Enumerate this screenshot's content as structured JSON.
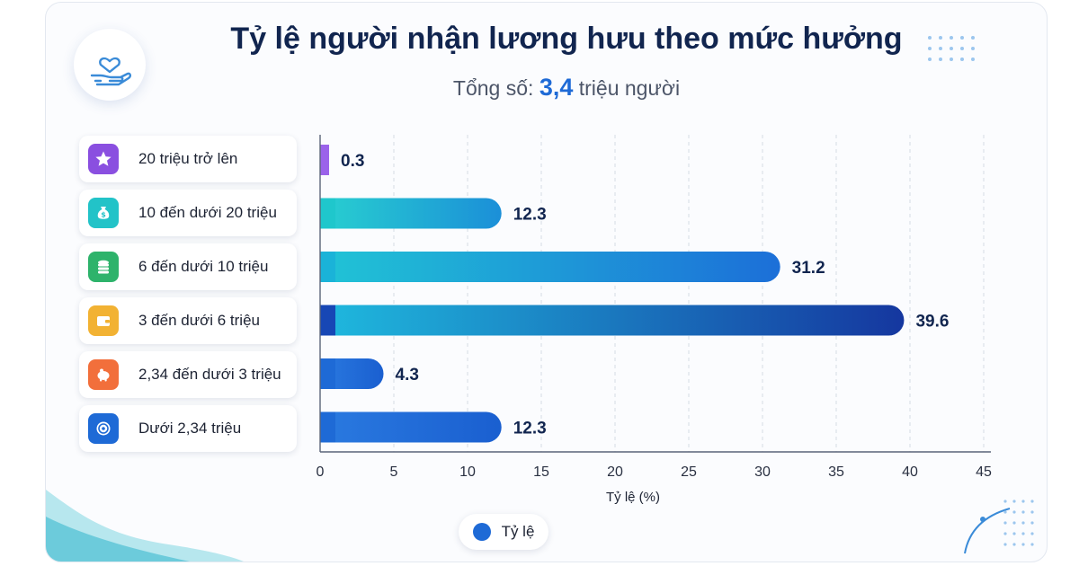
{
  "chart_data": {
    "type": "bar",
    "orientation": "horizontal",
    "title": "Tỷ lệ người nhận lương hưu theo mức hưởng",
    "subtitle_prefix": "Tổng số: ",
    "subtitle_value": "3,4",
    "subtitle_suffix": " triệu người",
    "categories": [
      "20 triệu trở lên",
      "10 đến dưới 20 triệu",
      "6 đến dưới 10 triệu",
      "3 đến dưới 6 triệu",
      "2,34 đến dưới 3 triệu",
      "Dưới 2,34 triệu"
    ],
    "series": [
      {
        "name": "Tỷ lệ",
        "values": [
          0.3,
          12.3,
          31.2,
          39.6,
          4.3,
          12.3
        ]
      }
    ],
    "value_labels": [
      "0.3",
      "12.3",
      "31.2",
      "39.6",
      "4.3",
      "12.3"
    ],
    "xlabel": "Tỷ lệ (%)",
    "xlim": [
      0,
      45
    ],
    "xticks": [
      "0",
      "5",
      "10",
      "15",
      "20",
      "25",
      "30",
      "35",
      "40",
      "45"
    ],
    "grid": "vertical dashed",
    "legend_position": "bottom-center"
  },
  "category_icons": [
    {
      "name": "star-icon",
      "color": "#8a4fe0"
    },
    {
      "name": "money-bag-icon",
      "color": "#22c3c8"
    },
    {
      "name": "coins-icon",
      "color": "#2eb36b"
    },
    {
      "name": "wallet-icon",
      "color": "#f2b233"
    },
    {
      "name": "piggy-bank-icon",
      "color": "#f26f3b"
    },
    {
      "name": "coin-icon",
      "color": "#1e6ad6"
    }
  ],
  "bar_colors": [
    "#8a4fe0",
    "#1fc7cc",
    "#1ab3d8",
    "#1747b5",
    "#1e6ad6",
    "#1e6ad6"
  ],
  "logo_icon": "heart-hand-icon"
}
